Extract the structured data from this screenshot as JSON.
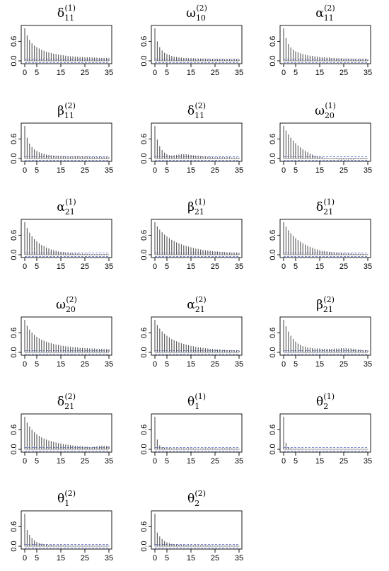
{
  "chart_data": [
    {
      "type": "bar",
      "title": {
        "symbol": "δ",
        "sub": "11",
        "sup": "(1)"
      },
      "x_ticks": [
        0,
        5,
        15,
        25,
        35
      ],
      "y_ticks": [
        "0.0",
        "0.6"
      ],
      "ylim": [
        0,
        1
      ],
      "xlim": [
        0,
        35
      ],
      "conf_bound": 0.055,
      "values": [
        1.0,
        0.78,
        0.64,
        0.54,
        0.47,
        0.42,
        0.38,
        0.34,
        0.31,
        0.28,
        0.26,
        0.24,
        0.22,
        0.21,
        0.19,
        0.18,
        0.17,
        0.16,
        0.15,
        0.14,
        0.14,
        0.13,
        0.13,
        0.12,
        0.12,
        0.11,
        0.11,
        0.11,
        0.1,
        0.1,
        0.1,
        0.09,
        0.09,
        0.09,
        0.09,
        0.08
      ]
    },
    {
      "type": "bar",
      "title": {
        "symbol": "ω",
        "sub": "10",
        "sup": "(2)"
      },
      "x_ticks": [
        0,
        5,
        15,
        25,
        35
      ],
      "y_ticks": [
        "0.0",
        "0.6"
      ],
      "ylim": [
        0,
        1
      ],
      "xlim": [
        0,
        35
      ],
      "conf_bound": 0.055,
      "values": [
        1.0,
        0.6,
        0.42,
        0.32,
        0.25,
        0.21,
        0.18,
        0.15,
        0.13,
        0.12,
        0.11,
        0.1,
        0.09,
        0.09,
        0.08,
        0.08,
        0.08,
        0.07,
        0.07,
        0.07,
        0.07,
        0.07,
        0.06,
        0.06,
        0.06,
        0.06,
        0.06,
        0.06,
        0.06,
        0.05,
        0.05,
        0.05,
        0.05,
        0.05,
        0.05,
        0.05
      ]
    },
    {
      "type": "bar",
      "title": {
        "symbol": "α",
        "sub": "11",
        "sup": "(2)"
      },
      "x_ticks": [
        0,
        5,
        15,
        25,
        35
      ],
      "y_ticks": [
        "0.0",
        "0.6"
      ],
      "ylim": [
        0,
        1
      ],
      "xlim": [
        0,
        35
      ],
      "conf_bound": 0.055,
      "values": [
        1.0,
        0.7,
        0.52,
        0.41,
        0.34,
        0.29,
        0.26,
        0.23,
        0.21,
        0.19,
        0.17,
        0.16,
        0.15,
        0.14,
        0.13,
        0.12,
        0.11,
        0.11,
        0.1,
        0.1,
        0.09,
        0.09,
        0.08,
        0.08,
        0.08,
        0.07,
        0.07,
        0.07,
        0.07,
        0.06,
        0.06,
        0.06,
        0.06,
        0.06,
        0.06,
        0.05
      ]
    },
    {
      "type": "bar",
      "title": {
        "symbol": "β",
        "sub": "11",
        "sup": "(2)"
      },
      "x_ticks": [
        0,
        5,
        15,
        25,
        35
      ],
      "y_ticks": [
        "0.0",
        "0.6"
      ],
      "ylim": [
        0,
        1
      ],
      "xlim": [
        0,
        35
      ],
      "conf_bound": 0.055,
      "values": [
        1.0,
        0.64,
        0.46,
        0.35,
        0.28,
        0.23,
        0.19,
        0.16,
        0.14,
        0.12,
        0.11,
        0.1,
        0.09,
        0.08,
        0.08,
        0.07,
        0.07,
        0.07,
        0.06,
        0.06,
        0.06,
        0.07,
        0.07,
        0.06,
        0.06,
        0.06,
        0.06,
        0.05,
        0.05,
        0.05,
        0.05,
        0.05,
        0.05,
        0.04,
        0.04,
        0.04
      ]
    },
    {
      "type": "bar",
      "title": {
        "symbol": "δ",
        "sub": "11",
        "sup": "(2)"
      },
      "x_ticks": [
        0,
        5,
        15,
        25,
        35
      ],
      "y_ticks": [
        "0.0",
        "0.6"
      ],
      "ylim": [
        0,
        1
      ],
      "xlim": [
        0,
        35
      ],
      "conf_bound": 0.055,
      "values": [
        1.0,
        0.58,
        0.38,
        0.26,
        0.18,
        0.13,
        0.1,
        0.09,
        0.1,
        0.11,
        0.12,
        0.13,
        0.13,
        0.13,
        0.12,
        0.11,
        0.1,
        0.09,
        0.08,
        0.07,
        0.06,
        0.06,
        0.05,
        0.05,
        0.04,
        0.04,
        0.04,
        0.04,
        0.04,
        0.04,
        0.04,
        0.04,
        0.03,
        0.03,
        0.03,
        0.03
      ]
    },
    {
      "type": "bar",
      "title": {
        "symbol": "ω",
        "sub": "20",
        "sup": "(1)"
      },
      "x_ticks": [
        0,
        5,
        15,
        25,
        35
      ],
      "y_ticks": [
        "0.0",
        "0.6"
      ],
      "ylim": [
        0,
        1
      ],
      "xlim": [
        0,
        35
      ],
      "conf_bound": 0.055,
      "values": [
        1.0,
        0.86,
        0.74,
        0.64,
        0.55,
        0.47,
        0.4,
        0.34,
        0.28,
        0.23,
        0.19,
        0.15,
        0.12,
        0.09,
        0.07,
        0.05,
        0.04,
        0.02,
        0.01,
        0.0,
        -0.01,
        -0.02,
        -0.02,
        -0.03,
        -0.03,
        -0.03,
        -0.03,
        -0.03,
        -0.03,
        -0.03,
        -0.02,
        -0.02,
        -0.02,
        -0.02,
        -0.02,
        -0.01
      ]
    },
    {
      "type": "bar",
      "title": {
        "symbol": "α",
        "sub": "21",
        "sup": "(1)"
      },
      "x_ticks": [
        0,
        5,
        15,
        25,
        35
      ],
      "y_ticks": [
        "0.0",
        "0.6"
      ],
      "ylim": [
        0,
        1
      ],
      "xlim": [
        0,
        35
      ],
      "conf_bound": 0.055,
      "values": [
        1.0,
        0.82,
        0.68,
        0.57,
        0.48,
        0.41,
        0.35,
        0.3,
        0.26,
        0.22,
        0.19,
        0.16,
        0.14,
        0.12,
        0.1,
        0.09,
        0.08,
        0.07,
        0.06,
        0.05,
        0.05,
        0.04,
        0.04,
        0.03,
        0.03,
        0.03,
        0.03,
        0.02,
        0.02,
        0.02,
        0.02,
        0.02,
        0.02,
        0.02,
        0.02,
        0.01
      ]
    },
    {
      "type": "bar",
      "title": {
        "symbol": "β",
        "sub": "21",
        "sup": "(1)"
      },
      "x_ticks": [
        0,
        5,
        15,
        25,
        35
      ],
      "y_ticks": [
        "0.0",
        "0.6"
      ],
      "ylim": [
        0,
        1
      ],
      "xlim": [
        0,
        35
      ],
      "conf_bound": 0.055,
      "values": [
        1.0,
        0.87,
        0.77,
        0.69,
        0.62,
        0.56,
        0.51,
        0.46,
        0.42,
        0.38,
        0.35,
        0.32,
        0.29,
        0.27,
        0.25,
        0.23,
        0.21,
        0.19,
        0.18,
        0.16,
        0.15,
        0.14,
        0.13,
        0.12,
        0.11,
        0.1,
        0.1,
        0.09,
        0.08,
        0.08,
        0.07,
        0.07,
        0.06,
        0.06,
        0.06,
        0.05
      ]
    },
    {
      "type": "bar",
      "title": {
        "symbol": "δ",
        "sub": "21",
        "sup": "(1)"
      },
      "x_ticks": [
        0,
        5,
        15,
        25,
        35
      ],
      "y_ticks": [
        "0.0",
        "0.6"
      ],
      "ylim": [
        0,
        1
      ],
      "xlim": [
        0,
        35
      ],
      "conf_bound": 0.055,
      "values": [
        1.0,
        0.86,
        0.75,
        0.66,
        0.58,
        0.51,
        0.45,
        0.4,
        0.35,
        0.31,
        0.27,
        0.24,
        0.21,
        0.18,
        0.16,
        0.14,
        0.12,
        0.11,
        0.1,
        0.09,
        0.08,
        0.07,
        0.06,
        0.06,
        0.05,
        0.05,
        0.04,
        0.04,
        0.04,
        0.03,
        0.03,
        0.03,
        0.03,
        0.03,
        0.02,
        0.02
      ]
    },
    {
      "type": "bar",
      "title": {
        "symbol": "ω",
        "sub": "20",
        "sup": "(2)"
      },
      "x_ticks": [
        0,
        5,
        15,
        25,
        35
      ],
      "y_ticks": [
        "0.0",
        "0.6"
      ],
      "ylim": [
        0,
        1
      ],
      "xlim": [
        0,
        35
      ],
      "conf_bound": 0.055,
      "values": [
        1.0,
        0.82,
        0.7,
        0.61,
        0.54,
        0.48,
        0.43,
        0.39,
        0.36,
        0.33,
        0.3,
        0.28,
        0.26,
        0.24,
        0.23,
        0.21,
        0.2,
        0.19,
        0.18,
        0.17,
        0.16,
        0.16,
        0.15,
        0.14,
        0.14,
        0.13,
        0.13,
        0.12,
        0.12,
        0.12,
        0.11,
        0.11,
        0.11,
        0.1,
        0.1,
        0.1
      ]
    },
    {
      "type": "bar",
      "title": {
        "symbol": "α",
        "sub": "21",
        "sup": "(2)"
      },
      "x_ticks": [
        0,
        5,
        15,
        25,
        35
      ],
      "y_ticks": [
        "0.0",
        "0.6"
      ],
      "ylim": [
        0,
        1
      ],
      "xlim": [
        0,
        35
      ],
      "conf_bound": 0.055,
      "values": [
        1.0,
        0.84,
        0.73,
        0.64,
        0.57,
        0.51,
        0.46,
        0.41,
        0.37,
        0.34,
        0.31,
        0.28,
        0.26,
        0.24,
        0.22,
        0.2,
        0.19,
        0.17,
        0.16,
        0.15,
        0.14,
        0.13,
        0.12,
        0.11,
        0.11,
        0.1,
        0.09,
        0.09,
        0.08,
        0.08,
        0.07,
        0.07,
        0.07,
        0.06,
        0.06,
        0.06
      ]
    },
    {
      "type": "bar",
      "title": {
        "symbol": "β",
        "sub": "21",
        "sup": "(2)"
      },
      "x_ticks": [
        0,
        5,
        15,
        25,
        35
      ],
      "y_ticks": [
        "0.0",
        "0.6"
      ],
      "ylim": [
        0,
        1
      ],
      "xlim": [
        0,
        35
      ],
      "conf_bound": 0.055,
      "values": [
        1.0,
        0.8,
        0.64,
        0.51,
        0.41,
        0.33,
        0.27,
        0.23,
        0.19,
        0.17,
        0.15,
        0.14,
        0.13,
        0.12,
        0.12,
        0.12,
        0.11,
        0.11,
        0.11,
        0.11,
        0.11,
        0.12,
        0.12,
        0.12,
        0.13,
        0.13,
        0.13,
        0.12,
        0.12,
        0.11,
        0.1,
        0.09,
        0.08,
        0.07,
        0.07,
        0.06
      ]
    },
    {
      "type": "bar",
      "title": {
        "symbol": "δ",
        "sub": "21",
        "sup": "(2)"
      },
      "x_ticks": [
        0,
        5,
        15,
        25,
        35
      ],
      "y_ticks": [
        "0.0",
        "0.6"
      ],
      "ylim": [
        0,
        1
      ],
      "xlim": [
        0,
        35
      ],
      "conf_bound": 0.055,
      "values": [
        1.0,
        0.82,
        0.7,
        0.6,
        0.52,
        0.46,
        0.41,
        0.37,
        0.33,
        0.3,
        0.27,
        0.25,
        0.23,
        0.21,
        0.19,
        0.18,
        0.16,
        0.15,
        0.14,
        0.13,
        0.12,
        0.11,
        0.1,
        0.1,
        0.09,
        0.08,
        0.08,
        0.07,
        0.07,
        0.08,
        0.09,
        0.1,
        0.11,
        0.11,
        0.1,
        0.1
      ]
    },
    {
      "type": "bar",
      "title": {
        "symbol": "θ",
        "sub": "1",
        "sup": "(1)"
      },
      "x_ticks": [
        0,
        5,
        15,
        25,
        35
      ],
      "y_ticks": [
        "0.0",
        "0.6"
      ],
      "ylim": [
        0,
        1
      ],
      "xlim": [
        0,
        35
      ],
      "conf_bound": 0.055,
      "values": [
        1.0,
        0.3,
        0.12,
        0.07,
        0.05,
        0.04,
        0.04,
        0.03,
        0.03,
        0.03,
        0.03,
        0.03,
        0.03,
        0.03,
        0.03,
        0.03,
        0.03,
        0.02,
        0.02,
        0.02,
        0.03,
        0.03,
        0.03,
        0.03,
        0.03,
        0.03,
        0.02,
        0.02,
        0.03,
        0.03,
        0.03,
        0.03,
        0.03,
        0.02,
        0.02,
        0.02
      ]
    },
    {
      "type": "bar",
      "title": {
        "symbol": "θ",
        "sub": "2",
        "sup": "(1)"
      },
      "x_ticks": [
        0,
        5,
        15,
        25,
        35
      ],
      "y_ticks": [
        "0.0",
        "0.6"
      ],
      "ylim": [
        0,
        1
      ],
      "xlim": [
        0,
        35
      ],
      "conf_bound": 0.055,
      "values": [
        1.0,
        0.2,
        0.06,
        0.03,
        0.02,
        0.02,
        0.02,
        0.02,
        0.02,
        0.01,
        0.01,
        0.01,
        0.01,
        0.01,
        0.01,
        0.01,
        0.01,
        0.01,
        0.01,
        0.01,
        0.01,
        0.01,
        0.01,
        0.01,
        0.01,
        0.01,
        0.01,
        0.01,
        0.01,
        0.01,
        0.01,
        0.01,
        0.01,
        0.01,
        0.01,
        0.01
      ]
    },
    {
      "type": "bar",
      "title": {
        "symbol": "θ",
        "sub": "1",
        "sup": "(2)"
      },
      "x_ticks": [
        0,
        5,
        15,
        25,
        35
      ],
      "y_ticks": [
        "0.0",
        "0.6"
      ],
      "ylim": [
        0,
        1
      ],
      "xlim": [
        0,
        35
      ],
      "conf_bound": 0.055,
      "values": [
        1.0,
        0.5,
        0.35,
        0.25,
        0.18,
        0.13,
        0.1,
        0.08,
        0.06,
        0.05,
        0.04,
        0.04,
        0.03,
        0.03,
        0.03,
        0.03,
        0.03,
        0.03,
        0.02,
        0.02,
        0.02,
        0.02,
        0.02,
        0.02,
        0.02,
        0.02,
        0.02,
        0.02,
        0.02,
        0.02,
        0.02,
        0.02,
        0.02,
        0.02,
        0.02,
        0.02
      ]
    },
    {
      "type": "bar",
      "title": {
        "symbol": "θ",
        "sub": "2",
        "sup": "(2)"
      },
      "x_ticks": [
        0,
        5,
        15,
        25,
        35
      ],
      "y_ticks": [
        "0.0",
        "0.6"
      ],
      "ylim": [
        0,
        1
      ],
      "xlim": [
        0,
        35
      ],
      "conf_bound": 0.055,
      "values": [
        1.0,
        0.42,
        0.3,
        0.22,
        0.16,
        0.12,
        0.09,
        0.07,
        0.06,
        0.05,
        0.05,
        0.04,
        0.04,
        0.04,
        0.03,
        0.03,
        0.03,
        0.03,
        0.03,
        0.03,
        0.03,
        0.03,
        0.03,
        0.03,
        0.02,
        0.02,
        0.02,
        0.02,
        0.02,
        0.02,
        0.02,
        0.02,
        0.02,
        0.02,
        0.02,
        0.02
      ]
    }
  ]
}
